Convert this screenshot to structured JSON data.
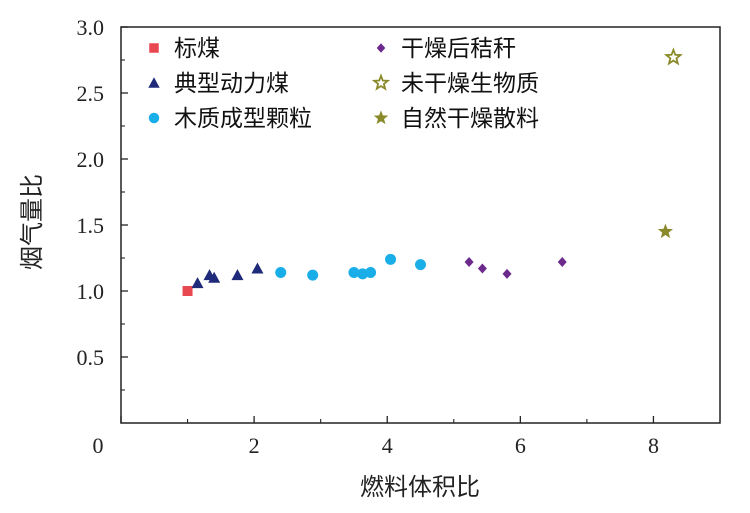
{
  "chart_data": {
    "type": "scatter",
    "title": "",
    "xlabel": "燃料体积比",
    "ylabel": "烟气量比",
    "xlim": [
      0,
      9
    ],
    "ylim": [
      0,
      3.0
    ],
    "xticks": [
      0,
      2,
      4,
      6,
      8
    ],
    "xtick_labels": [
      "0",
      "2",
      "4",
      "6",
      "8"
    ],
    "yticks": [
      0.5,
      1.0,
      1.5,
      2.0,
      2.5,
      3.0
    ],
    "ytick_labels": [
      "0.5",
      "1.0",
      "1.5",
      "2.0",
      "2.5",
      "3.0"
    ],
    "grid": false,
    "legend_position": "top-left",
    "series": [
      {
        "name": "标煤",
        "marker": "square",
        "color": "#e8484f",
        "points": [
          [
            1.0,
            1.0
          ]
        ]
      },
      {
        "name": "典型动力煤",
        "marker": "triangle",
        "color": "#1f2a7a",
        "points": [
          [
            1.15,
            1.06
          ],
          [
            1.33,
            1.12
          ],
          [
            1.4,
            1.1
          ],
          [
            1.75,
            1.12
          ],
          [
            2.05,
            1.17
          ]
        ]
      },
      {
        "name": "木质成型颗粒",
        "marker": "circle",
        "color": "#19aee8",
        "points": [
          [
            2.4,
            1.14
          ],
          [
            2.88,
            1.12
          ],
          [
            3.5,
            1.14
          ],
          [
            3.63,
            1.13
          ],
          [
            3.75,
            1.14
          ],
          [
            4.05,
            1.24
          ],
          [
            4.5,
            1.2
          ]
        ]
      },
      {
        "name": "干燥后秸秆",
        "marker": "diamond",
        "color": "#6b2a8c",
        "points": [
          [
            5.23,
            1.22
          ],
          [
            5.43,
            1.17
          ],
          [
            5.8,
            1.13
          ],
          [
            6.63,
            1.22
          ]
        ]
      },
      {
        "name": "未干燥生物质",
        "marker": "star-open",
        "color": "#8a8a2a",
        "points": [
          [
            8.3,
            2.77
          ]
        ]
      },
      {
        "name": "自然干燥散料",
        "marker": "star",
        "color": "#8a8a2a",
        "points": [
          [
            8.18,
            1.45
          ]
        ]
      }
    ]
  }
}
